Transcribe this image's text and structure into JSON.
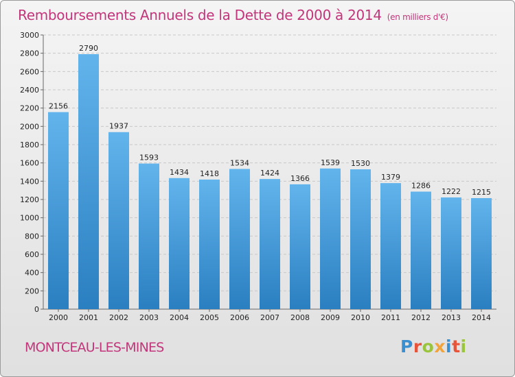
{
  "title": "Remboursements Annuels de la Dette de 2000 à 2014",
  "subtitle": "(en milliers d'€)",
  "city": "MONTCEAU-LES-MINES",
  "logo": {
    "letters": [
      "P",
      "r",
      "o",
      "x",
      "i",
      "t",
      "i"
    ],
    "colors": [
      "#3a8fd0",
      "#e8543a",
      "#9ac43c",
      "#f2a33a",
      "#3a8fd0",
      "#e8543a",
      "#9ac43c"
    ]
  },
  "colors": {
    "bar_light": "#62b4ec",
    "bar_dark": "#2a7fc0",
    "title": "#c3357a"
  },
  "chart_data": {
    "type": "bar",
    "title": "Remboursements Annuels de la Dette de 2000 à 2014",
    "categories": [
      "2000",
      "2001",
      "2002",
      "2003",
      "2004",
      "2005",
      "2006",
      "2007",
      "2008",
      "2009",
      "2010",
      "2011",
      "2012",
      "2013",
      "2014"
    ],
    "values": [
      2156,
      2790,
      1937,
      1593,
      1434,
      1418,
      1534,
      1424,
      1366,
      1539,
      1530,
      1379,
      1286,
      1222,
      1215
    ],
    "yticks": [
      0,
      200,
      400,
      600,
      800,
      1000,
      1200,
      1400,
      1600,
      1800,
      2000,
      2200,
      2400,
      2600,
      2800,
      3000
    ],
    "ylim": [
      0,
      3000
    ],
    "grid": true,
    "legend": "none"
  }
}
